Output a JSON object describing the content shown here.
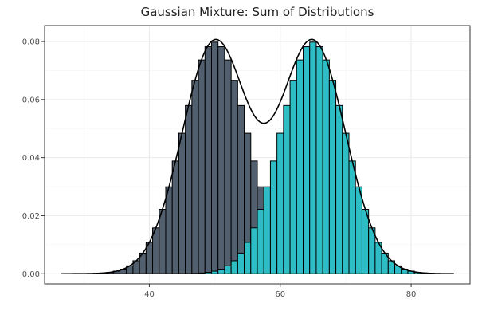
{
  "colors": {
    "panel_border": "#333333",
    "grid_major": "#ebebeb",
    "grid_minor": "#f5f5f5",
    "bar_outline": "#000000",
    "curve": "#000000",
    "text": "#4d4d4d"
  },
  "chart_data": {
    "type": "bar",
    "title": "Gaussian Mixture: Sum of Distributions",
    "xlabel": "",
    "ylabel": "",
    "xlim": [
      24,
      89
    ],
    "ylim": [
      -0.0035,
      0.0855
    ],
    "x_ticks": [
      40,
      60,
      80
    ],
    "y_ticks": [
      0.0,
      0.02,
      0.04,
      0.06,
      0.08
    ],
    "x_tick_labels": [
      "40",
      "60",
      "80"
    ],
    "y_tick_labels": [
      "0.00",
      "0.02",
      "0.04",
      "0.06",
      "0.08"
    ],
    "grid": true,
    "legend": "none",
    "bin_width": 1,
    "series": [
      {
        "color": "#525f6e",
        "mean": 50,
        "sd": 5
      },
      {
        "color": "#2ebdc4",
        "mean": 65,
        "sd": 5
      }
    ],
    "bin_centers": [
      27,
      28,
      29,
      30,
      31,
      32,
      33,
      34,
      35,
      36,
      37,
      38,
      39,
      40,
      41,
      42,
      43,
      44,
      45,
      46,
      47,
      48,
      49,
      50,
      51,
      52,
      53,
      54,
      55,
      56,
      57,
      58,
      59,
      60,
      61,
      62,
      63,
      64,
      65,
      66,
      67,
      68,
      69,
      70,
      71,
      72,
      73,
      74,
      75,
      76,
      77,
      78,
      79,
      80,
      81,
      82,
      83,
      84,
      85,
      86
    ],
    "curve": {
      "type": "density",
      "x_range": [
        26.5,
        86.5
      ]
    }
  }
}
